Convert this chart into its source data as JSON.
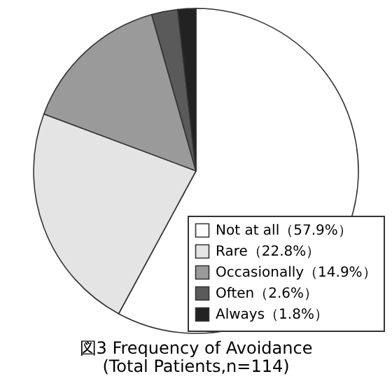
{
  "chart_data": {
    "type": "pie",
    "title": "図3 Frequency of Avoidance",
    "subtitle": "(Total Patients,n=114)",
    "categories": [
      "Not at all（57.9%）",
      "Rare（22.8%）",
      "Occasionally（14.9%）",
      "Often（2.6%）",
      "Always（1.8%）"
    ],
    "values": [
      57.9,
      22.8,
      14.9,
      2.6,
      1.8
    ],
    "colors": [
      "#ffffff",
      "#e4e4e4",
      "#9a9a9a",
      "#5a5a5a",
      "#222222"
    ],
    "legend": "bottom right"
  }
}
